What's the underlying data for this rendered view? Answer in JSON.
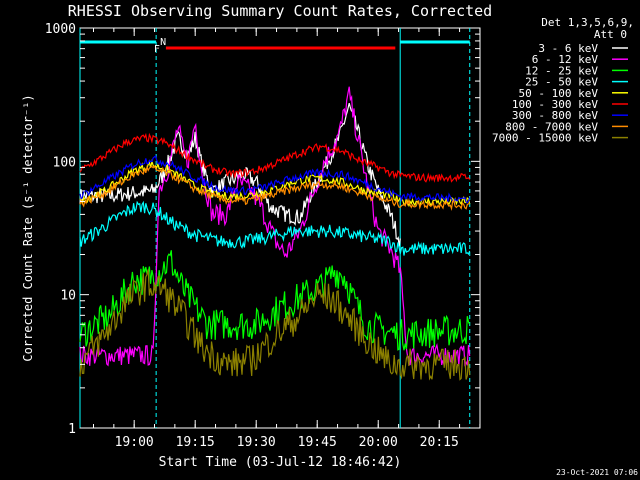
{
  "chart_data": {
    "type": "line",
    "title": "RHESSI Observing Summary Count Rates, Corrected",
    "xlabel": "Start Time (03-Jul-12 18:46:42)",
    "ylabel": "Corrected Count Rate (s⁻¹ detector⁻¹)",
    "ylog": true,
    "ylim": [
      1,
      1000
    ],
    "xlim": [
      18.778,
      20.417
    ],
    "x_ticks": [
      {
        "h": 19.0,
        "label": "19:00"
      },
      {
        "h": 19.25,
        "label": "19:15"
      },
      {
        "h": 19.5,
        "label": "19:30"
      },
      {
        "h": 19.75,
        "label": "19:45"
      },
      {
        "h": 20.0,
        "label": "20:00"
      },
      {
        "h": 20.25,
        "label": "20:15"
      }
    ],
    "y_ticks": [
      {
        "v": 1,
        "label": "1"
      },
      {
        "v": 10,
        "label": "10"
      },
      {
        "v": 100,
        "label": "100"
      },
      {
        "v": 1000,
        "label": "1000"
      }
    ],
    "legend": {
      "header1": "Det 1,3,5,6,9,",
      "header2": "Att 0",
      "placement": "right"
    },
    "flags": [
      {
        "code": "N",
        "start": 18.778,
        "end": 19.09,
        "color": "#00ffff"
      },
      {
        "code": "N",
        "start": 20.09,
        "end": 20.375,
        "color": "#00ffff"
      },
      {
        "code": "F",
        "start": 19.13,
        "end": 20.07,
        "color": "#ff0000"
      }
    ],
    "night_lines": [
      18.778,
      19.09,
      20.09,
      20.375
    ],
    "series": [
      {
        "name": "3 - 6 keV",
        "color": "#ffffff",
        "points": [
          [
            18.778,
            55
          ],
          [
            18.9,
            55
          ],
          [
            19.0,
            58
          ],
          [
            19.08,
            60
          ],
          [
            19.12,
            80
          ],
          [
            19.18,
            150
          ],
          [
            19.22,
            110
          ],
          [
            19.25,
            150
          ],
          [
            19.28,
            90
          ],
          [
            19.32,
            60
          ],
          [
            19.38,
            70
          ],
          [
            19.45,
            80
          ],
          [
            19.5,
            70
          ],
          [
            19.56,
            45
          ],
          [
            19.62,
            40
          ],
          [
            19.68,
            38
          ],
          [
            19.72,
            55
          ],
          [
            19.78,
            90
          ],
          [
            19.84,
            150
          ],
          [
            19.88,
            260
          ],
          [
            19.92,
            160
          ],
          [
            19.96,
            90
          ],
          [
            20.0,
            60
          ],
          [
            20.05,
            40
          ],
          [
            20.09,
            25
          ]
        ]
      },
      {
        "name": "6 - 12 keV",
        "color": "#ff00ff",
        "points": [
          [
            18.778,
            3.5
          ],
          [
            19.08,
            3.5
          ],
          [
            19.1,
            60
          ],
          [
            19.14,
            90
          ],
          [
            19.18,
            180
          ],
          [
            19.2,
            120
          ],
          [
            19.22,
            100
          ],
          [
            19.25,
            200
          ],
          [
            19.28,
            80
          ],
          [
            19.32,
            40
          ],
          [
            19.38,
            40
          ],
          [
            19.42,
            70
          ],
          [
            19.48,
            60
          ],
          [
            19.52,
            45
          ],
          [
            19.58,
            25
          ],
          [
            19.62,
            20
          ],
          [
            19.68,
            30
          ],
          [
            19.72,
            50
          ],
          [
            19.78,
            100
          ],
          [
            19.84,
            160
          ],
          [
            19.88,
            320
          ],
          [
            19.92,
            140
          ],
          [
            19.96,
            60
          ],
          [
            20.0,
            30
          ],
          [
            20.05,
            22
          ],
          [
            20.09,
            15
          ],
          [
            20.12,
            3.5
          ],
          [
            20.375,
            3.5
          ]
        ]
      },
      {
        "name": "12 - 25 keV",
        "color": "#00ff00",
        "points": [
          [
            18.778,
            5
          ],
          [
            18.9,
            7
          ],
          [
            19.0,
            13
          ],
          [
            19.05,
            13
          ],
          [
            19.1,
            15
          ],
          [
            19.15,
            18
          ],
          [
            19.2,
            11
          ],
          [
            19.25,
            8
          ],
          [
            19.3,
            6
          ],
          [
            19.4,
            6
          ],
          [
            19.5,
            6
          ],
          [
            19.6,
            8
          ],
          [
            19.7,
            10
          ],
          [
            19.78,
            12
          ],
          [
            19.82,
            15
          ],
          [
            19.86,
            14
          ],
          [
            19.9,
            9
          ],
          [
            19.95,
            6
          ],
          [
            20.0,
            5.5
          ],
          [
            20.09,
            5
          ],
          [
            20.375,
            5.5
          ]
        ]
      },
      {
        "name": "25 - 50 keV",
        "color": "#00ffff",
        "points": [
          [
            18.778,
            25
          ],
          [
            18.85,
            30
          ],
          [
            18.95,
            40
          ],
          [
            19.0,
            45
          ],
          [
            19.05,
            46
          ],
          [
            19.1,
            42
          ],
          [
            19.15,
            35
          ],
          [
            19.25,
            28
          ],
          [
            19.35,
            25
          ],
          [
            19.45,
            25
          ],
          [
            19.55,
            27
          ],
          [
            19.65,
            30
          ],
          [
            19.72,
            30
          ],
          [
            19.8,
            30
          ],
          [
            19.9,
            28
          ],
          [
            20.0,
            26
          ],
          [
            20.05,
            25
          ],
          [
            20.09,
            22
          ],
          [
            20.375,
            22
          ]
        ]
      },
      {
        "name": "50 - 100 keV",
        "color": "#ffff00",
        "points": [
          [
            18.778,
            50
          ],
          [
            18.88,
            60
          ],
          [
            19.0,
            85
          ],
          [
            19.07,
            95
          ],
          [
            19.15,
            85
          ],
          [
            19.25,
            65
          ],
          [
            19.35,
            55
          ],
          [
            19.45,
            55
          ],
          [
            19.55,
            60
          ],
          [
            19.65,
            70
          ],
          [
            19.75,
            75
          ],
          [
            19.85,
            70
          ],
          [
            19.95,
            60
          ],
          [
            20.05,
            55
          ],
          [
            20.09,
            50
          ],
          [
            20.375,
            50
          ]
        ]
      },
      {
        "name": "100 - 300 keV",
        "color": "#ff0000",
        "points": [
          [
            18.778,
            85
          ],
          [
            18.88,
            110
          ],
          [
            18.97,
            140
          ],
          [
            19.05,
            150
          ],
          [
            19.12,
            140
          ],
          [
            19.2,
            115
          ],
          [
            19.3,
            90
          ],
          [
            19.4,
            80
          ],
          [
            19.5,
            85
          ],
          [
            19.6,
            100
          ],
          [
            19.7,
            120
          ],
          [
            19.77,
            130
          ],
          [
            19.85,
            120
          ],
          [
            19.93,
            100
          ],
          [
            20.0,
            90
          ],
          [
            20.05,
            82
          ],
          [
            20.09,
            78
          ],
          [
            20.2,
            75
          ],
          [
            20.375,
            76
          ]
        ]
      },
      {
        "name": "300 - 800 keV",
        "color": "#0000ff",
        "points": [
          [
            18.778,
            55
          ],
          [
            18.88,
            70
          ],
          [
            19.0,
            95
          ],
          [
            19.07,
            105
          ],
          [
            19.15,
            95
          ],
          [
            19.25,
            75
          ],
          [
            19.35,
            62
          ],
          [
            19.45,
            60
          ],
          [
            19.55,
            65
          ],
          [
            19.65,
            75
          ],
          [
            19.75,
            82
          ],
          [
            19.85,
            80
          ],
          [
            19.95,
            68
          ],
          [
            20.05,
            58
          ],
          [
            20.09,
            55
          ],
          [
            20.375,
            52
          ]
        ]
      },
      {
        "name": "800 - 7000 keV",
        "color": "#ff8c00",
        "points": [
          [
            18.778,
            48
          ],
          [
            18.88,
            58
          ],
          [
            19.0,
            80
          ],
          [
            19.07,
            88
          ],
          [
            19.15,
            80
          ],
          [
            19.25,
            62
          ],
          [
            19.35,
            52
          ],
          [
            19.45,
            50
          ],
          [
            19.55,
            55
          ],
          [
            19.65,
            62
          ],
          [
            19.75,
            68
          ],
          [
            19.85,
            65
          ],
          [
            19.95,
            56
          ],
          [
            20.05,
            50
          ],
          [
            20.09,
            48
          ],
          [
            20.375,
            47
          ]
        ]
      },
      {
        "name": "7000 - 15000 keV",
        "color": "#8b8000",
        "points": [
          [
            18.778,
            3
          ],
          [
            18.88,
            5
          ],
          [
            18.97,
            9
          ],
          [
            19.05,
            12
          ],
          [
            19.12,
            11
          ],
          [
            19.2,
            7
          ],
          [
            19.28,
            4
          ],
          [
            19.38,
            3
          ],
          [
            19.48,
            3.2
          ],
          [
            19.58,
            5
          ],
          [
            19.68,
            7
          ],
          [
            19.75,
            10
          ],
          [
            19.82,
            9
          ],
          [
            19.9,
            6
          ],
          [
            19.98,
            4
          ],
          [
            20.05,
            3
          ],
          [
            20.09,
            3
          ],
          [
            20.375,
            3
          ]
        ]
      }
    ],
    "footer_timestamp": "23-Oct-2021 07:06",
    "grid": false
  }
}
